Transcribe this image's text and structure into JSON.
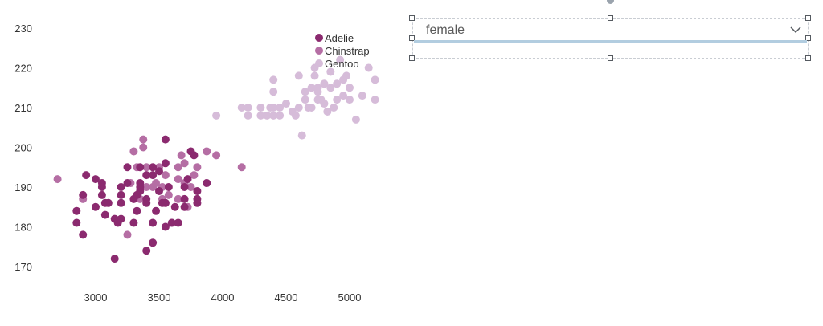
{
  "chart_data": {
    "type": "scatter",
    "title": "",
    "xlabel": "",
    "ylabel": "",
    "xlim": [
      2600,
      5250
    ],
    "ylim": [
      167,
      235
    ],
    "x_ticks": [
      "3000",
      "3500",
      "4000",
      "4500",
      "5000"
    ],
    "y_ticks": [
      "230",
      "220",
      "210",
      "200",
      "190",
      "180",
      "170"
    ],
    "legend_position": "top-right",
    "grid": false,
    "series": [
      {
        "name": "Adelie",
        "color": "#8b2a6f",
        "points": [
          [
            2850,
            184
          ],
          [
            2850,
            181
          ],
          [
            2900,
            178
          ],
          [
            2900,
            188
          ],
          [
            2925,
            193
          ],
          [
            3000,
            192
          ],
          [
            3000,
            185
          ],
          [
            3050,
            191
          ],
          [
            3050,
            190
          ],
          [
            3050,
            188
          ],
          [
            3075,
            186
          ],
          [
            3075,
            183
          ],
          [
            3100,
            186
          ],
          [
            3150,
            182
          ],
          [
            3150,
            172
          ],
          [
            3175,
            181
          ],
          [
            3200,
            182
          ],
          [
            3200,
            190
          ],
          [
            3200,
            188
          ],
          [
            3200,
            186
          ],
          [
            3250,
            195
          ],
          [
            3250,
            191
          ],
          [
            3300,
            187
          ],
          [
            3300,
            181
          ],
          [
            3325,
            184
          ],
          [
            3325,
            188
          ],
          [
            3350,
            195
          ],
          [
            3350,
            191
          ],
          [
            3350,
            189
          ],
          [
            3400,
            193
          ],
          [
            3400,
            186
          ],
          [
            3400,
            174
          ],
          [
            3400,
            187
          ],
          [
            3450,
            195
          ],
          [
            3450,
            176
          ],
          [
            3450,
            193
          ],
          [
            3475,
            184
          ],
          [
            3500,
            194
          ],
          [
            3500,
            189
          ],
          [
            3525,
            186
          ],
          [
            3550,
            202
          ],
          [
            3550,
            180
          ],
          [
            3550,
            196
          ],
          [
            3575,
            190
          ],
          [
            3600,
            181
          ],
          [
            3625,
            185
          ],
          [
            3650,
            181
          ],
          [
            3700,
            190
          ],
          [
            3700,
            187
          ],
          [
            3700,
            185
          ],
          [
            3725,
            192
          ],
          [
            3750,
            199
          ],
          [
            3775,
            198
          ],
          [
            3800,
            189
          ],
          [
            3800,
            187
          ],
          [
            3800,
            186
          ],
          [
            3875,
            191
          ],
          [
            3550,
            186
          ],
          [
            3350,
            190
          ],
          [
            3450,
            181
          ]
        ]
      },
      {
        "name": "Chinstrap",
        "color": "#b56ea4",
        "points": [
          [
            2700,
            192
          ],
          [
            2900,
            187
          ],
          [
            3250,
            178
          ],
          [
            3275,
            191
          ],
          [
            3300,
            199
          ],
          [
            3325,
            195
          ],
          [
            3350,
            187
          ],
          [
            3375,
            200
          ],
          [
            3375,
            202
          ],
          [
            3400,
            190
          ],
          [
            3400,
            195
          ],
          [
            3450,
            190
          ],
          [
            3475,
            191
          ],
          [
            3500,
            195
          ],
          [
            3525,
            187
          ],
          [
            3525,
            190
          ],
          [
            3550,
            193
          ],
          [
            3575,
            188
          ],
          [
            3600,
            181
          ],
          [
            3650,
            192
          ],
          [
            3650,
            187
          ],
          [
            3650,
            195
          ],
          [
            3675,
            198
          ],
          [
            3700,
            196
          ],
          [
            3700,
            191
          ],
          [
            3725,
            185
          ],
          [
            3750,
            190
          ],
          [
            3775,
            193
          ],
          [
            3800,
            195
          ],
          [
            3875,
            199
          ],
          [
            3950,
            198
          ],
          [
            4150,
            195
          ]
        ]
      },
      {
        "name": "Gentoo",
        "color": "#d6bcd9",
        "points": [
          [
            3950,
            208
          ],
          [
            4150,
            210
          ],
          [
            4200,
            210
          ],
          [
            4200,
            208
          ],
          [
            4300,
            208
          ],
          [
            4300,
            210
          ],
          [
            4350,
            208
          ],
          [
            4375,
            210
          ],
          [
            4400,
            217
          ],
          [
            4400,
            214
          ],
          [
            4400,
            210
          ],
          [
            4400,
            208
          ],
          [
            4450,
            208
          ],
          [
            4450,
            210
          ],
          [
            4500,
            211
          ],
          [
            4550,
            209
          ],
          [
            4575,
            208
          ],
          [
            4600,
            210
          ],
          [
            4600,
            218
          ],
          [
            4625,
            203
          ],
          [
            4650,
            212
          ],
          [
            4650,
            214
          ],
          [
            4675,
            210
          ],
          [
            4700,
            210
          ],
          [
            4700,
            215
          ],
          [
            4725,
            220
          ],
          [
            4725,
            218
          ],
          [
            4750,
            212
          ],
          [
            4750,
            214
          ],
          [
            4750,
            215
          ],
          [
            4775,
            212
          ],
          [
            4800,
            216
          ],
          [
            4800,
            211
          ],
          [
            4825,
            209
          ],
          [
            4850,
            219
          ],
          [
            4850,
            215
          ],
          [
            4875,
            210
          ],
          [
            4900,
            212
          ],
          [
            4900,
            216
          ],
          [
            4925,
            222
          ],
          [
            4950,
            217
          ],
          [
            4950,
            213
          ],
          [
            4975,
            218
          ],
          [
            5000,
            215
          ],
          [
            5000,
            212
          ],
          [
            5050,
            207
          ],
          [
            5100,
            213
          ],
          [
            5150,
            220
          ],
          [
            5200,
            217
          ],
          [
            5200,
            212
          ]
        ]
      }
    ]
  },
  "dropdown": {
    "value": "female",
    "chevron_icon": "chevron-down-icon"
  }
}
